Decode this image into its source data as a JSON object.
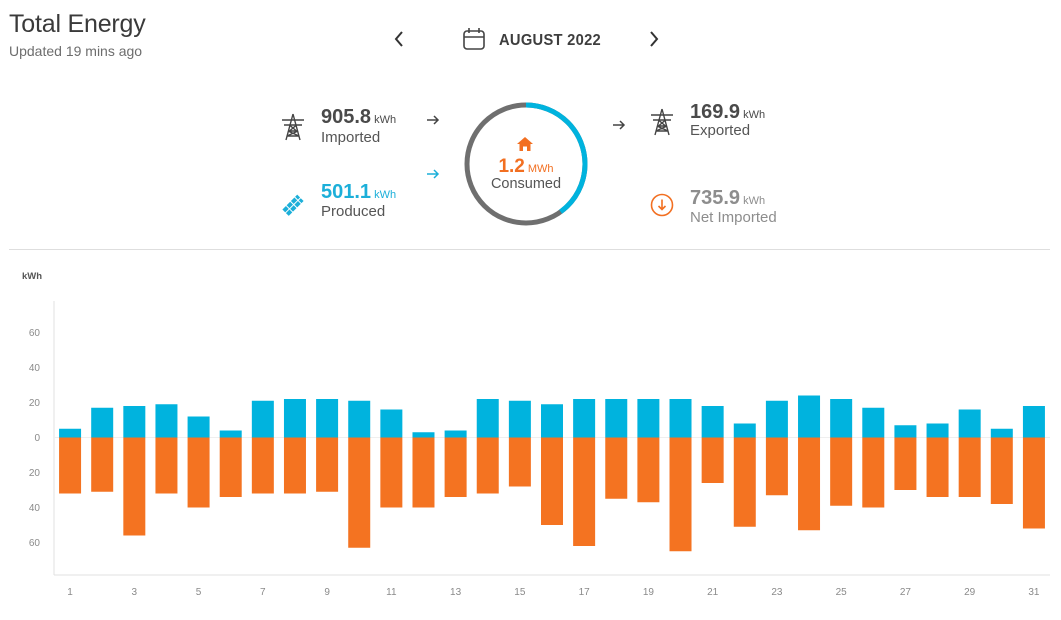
{
  "header": {
    "title": "Total Energy",
    "updated": "Updated 19 mins ago",
    "period": "AUGUST 2022"
  },
  "summary": {
    "imported": {
      "value": "905.8",
      "unit": "kWh",
      "label": "Imported"
    },
    "produced": {
      "value": "501.1",
      "unit": "kWh",
      "label": "Produced"
    },
    "consumed": {
      "value": "1.2",
      "unit": "MWh",
      "label": "Consumed",
      "produced_share": 0.4
    },
    "exported": {
      "value": "169.9",
      "unit": "kWh",
      "label": "Exported"
    },
    "net_imported": {
      "value": "735.9",
      "unit": "kWh",
      "label": "Net Imported"
    }
  },
  "colors": {
    "produced": "#00b3de",
    "consumed": "#f47321",
    "ring": "#6f6f6f"
  },
  "icons": {
    "prev": "chevron-left-icon",
    "next": "chevron-right-icon",
    "calendar": "calendar-icon",
    "grid": "power-tower-icon",
    "solar": "solar-panel-icon",
    "home": "home-icon",
    "net": "download-circle-icon"
  },
  "chart_data": {
    "type": "bar",
    "ylabel": "kWh",
    "yticks": [
      "60",
      "40",
      "20",
      "0",
      "20",
      "40",
      "60"
    ],
    "ylim": [
      -80,
      80
    ],
    "xtick_labels": [
      "1",
      "3",
      "5",
      "7",
      "9",
      "11",
      "13",
      "15",
      "17",
      "19",
      "21",
      "23",
      "25",
      "27",
      "29",
      "31"
    ],
    "categories": [
      1,
      2,
      3,
      4,
      5,
      6,
      7,
      8,
      9,
      10,
      11,
      12,
      13,
      14,
      15,
      16,
      17,
      18,
      19,
      20,
      21,
      22,
      23,
      24,
      25,
      26,
      27,
      28,
      29,
      30,
      31
    ],
    "series": [
      {
        "name": "Produced",
        "values": [
          5,
          17,
          18,
          19,
          12,
          4,
          21,
          22,
          22,
          21,
          16,
          3,
          4,
          22,
          21,
          19,
          22,
          22,
          22,
          22,
          18,
          8,
          21,
          24,
          22,
          17,
          7,
          8,
          16,
          5,
          18
        ]
      },
      {
        "name": "Consumed",
        "values": [
          -32,
          -31,
          -56,
          -32,
          -40,
          -34,
          -32,
          -32,
          -31,
          -63,
          -40,
          -40,
          -34,
          -32,
          -28,
          -50,
          -62,
          -35,
          -37,
          -65,
          -26,
          -51,
          -33,
          -53,
          -39,
          -40,
          -30,
          -34,
          -34,
          -38,
          -52
        ]
      }
    ]
  }
}
